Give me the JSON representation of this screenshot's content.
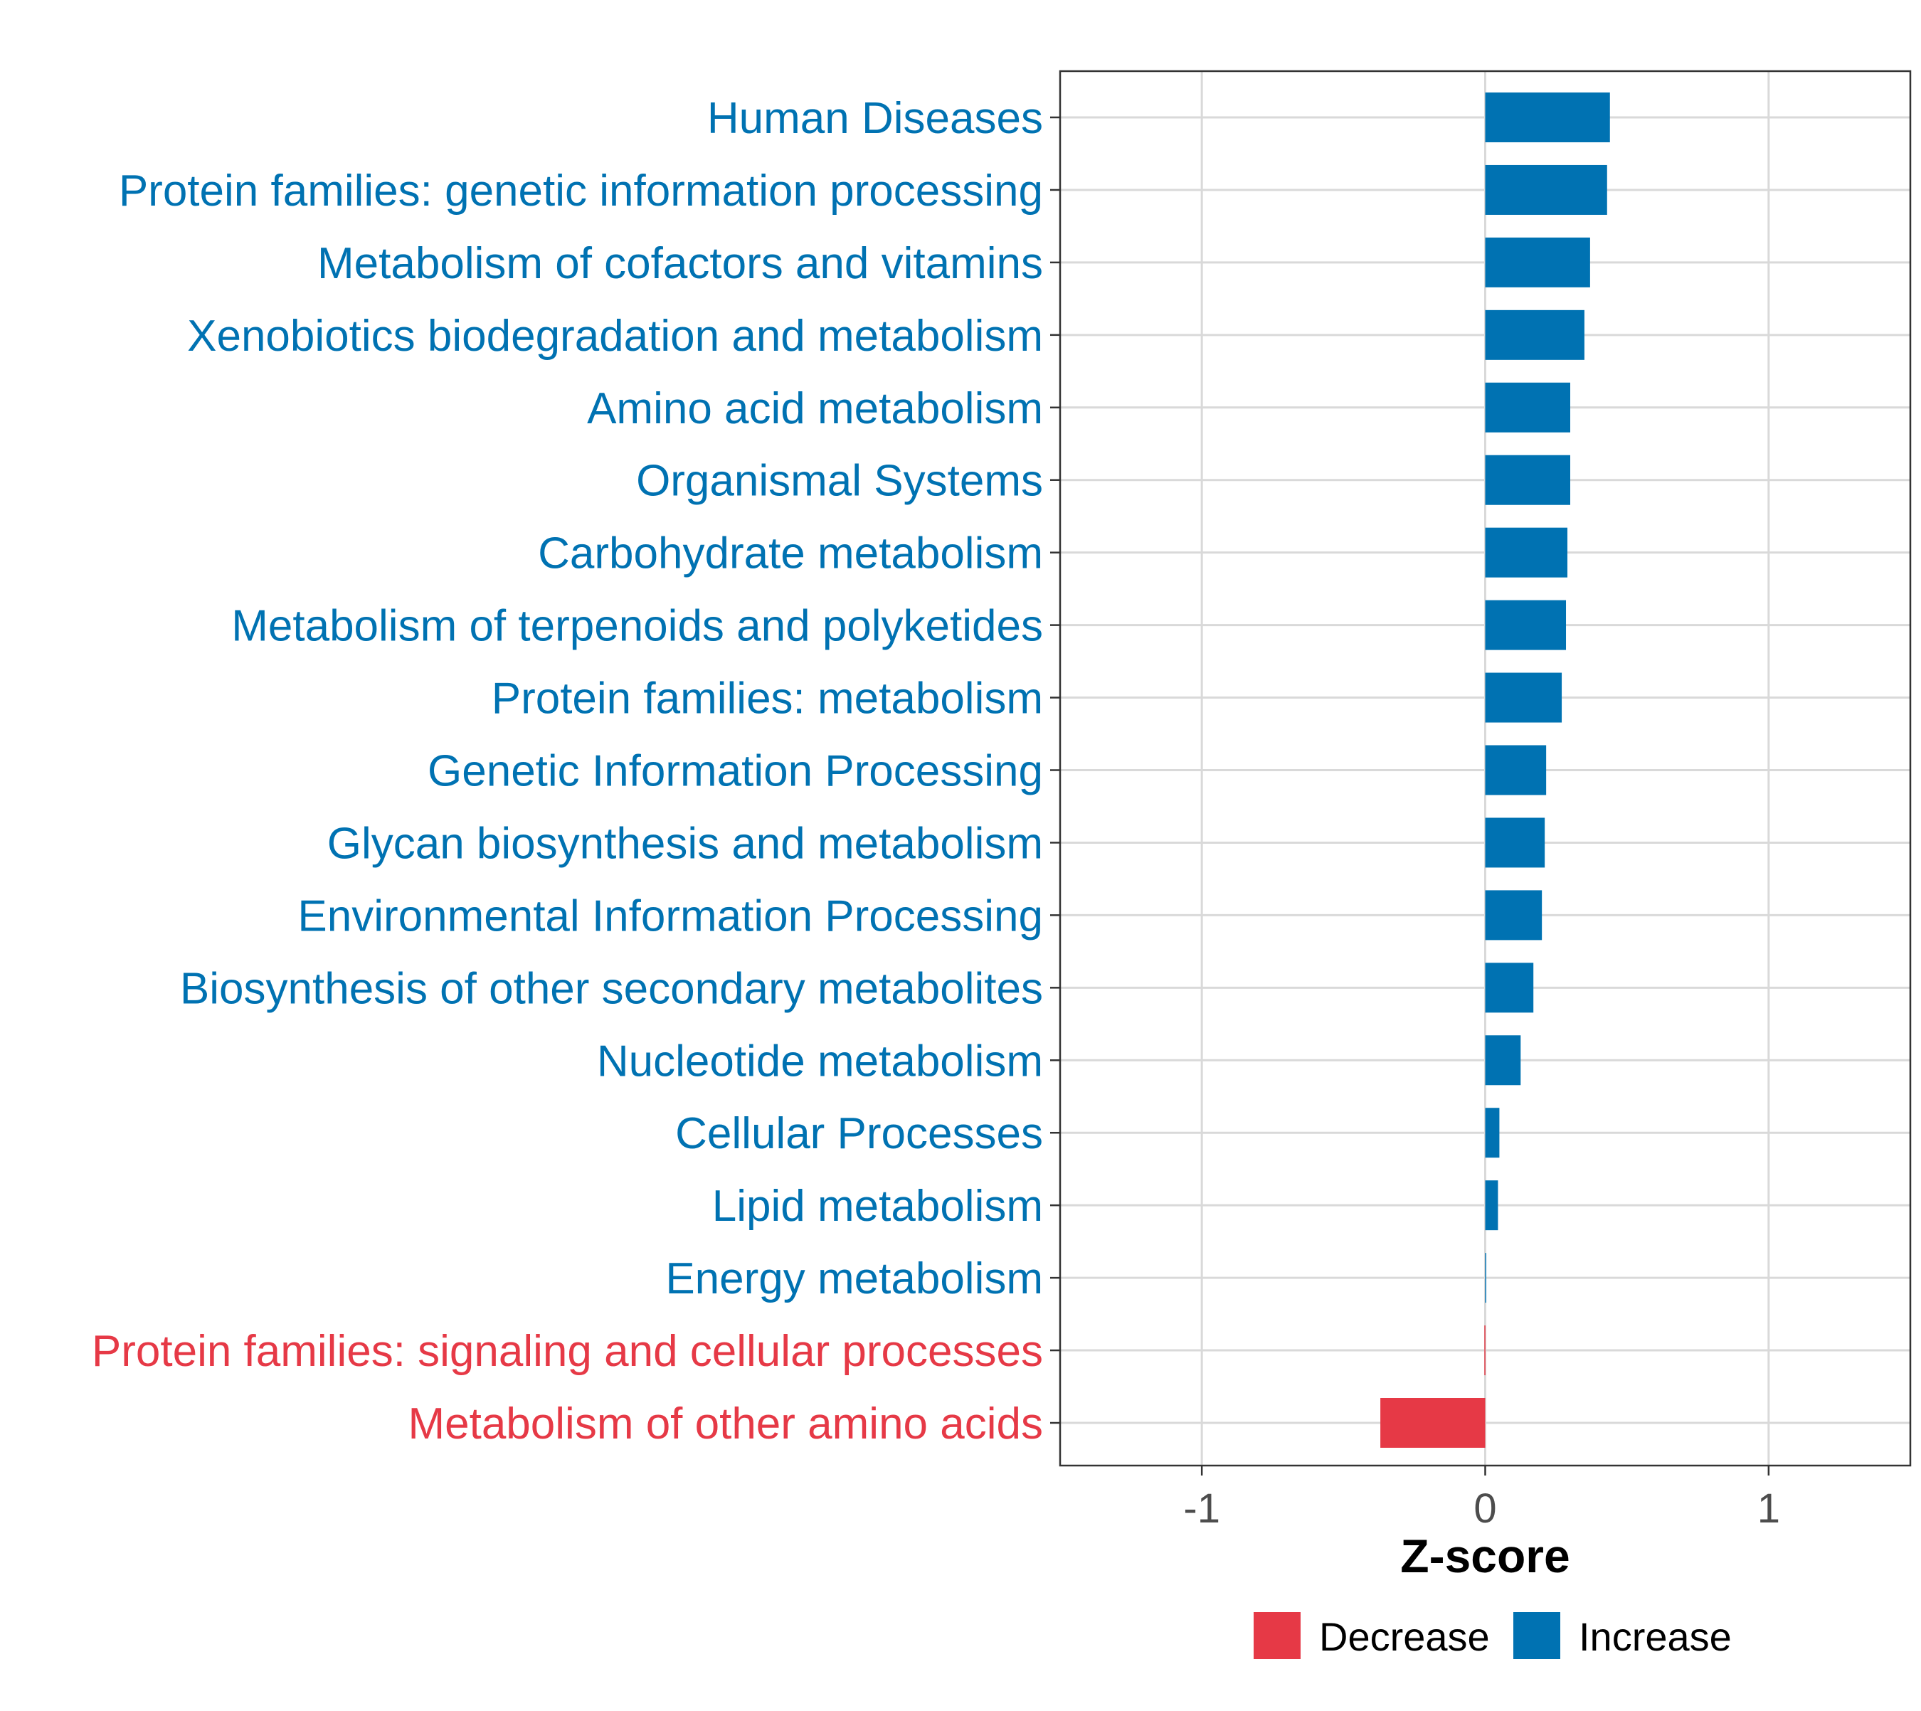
{
  "chart_data": {
    "type": "bar",
    "orientation": "horizontal",
    "xlabel": "Z-score",
    "ylabel": "",
    "xlim": [
      -1.5,
      1.5
    ],
    "xticks": [
      -1,
      0,
      1
    ],
    "tick_labels": [
      "-1",
      "0",
      "1"
    ],
    "grid": true,
    "legend_position": "bottom",
    "legend": [
      {
        "label": "Decrease",
        "color": "#E63946"
      },
      {
        "label": "Increase",
        "color": "#0072B2"
      }
    ],
    "categories": [
      "Human Diseases",
      "Protein families: genetic information processing",
      "Metabolism of cofactors and vitamins",
      "Xenobiotics biodegradation and metabolism",
      "Amino acid metabolism",
      "Organismal Systems",
      "Carbohydrate metabolism",
      "Metabolism of terpenoids and polyketides",
      "Protein families: metabolism",
      "Genetic Information Processing",
      "Glycan biosynthesis and metabolism",
      "Environmental Information Processing",
      "Biosynthesis of other secondary metabolites",
      "Nucleotide metabolism",
      "Cellular Processes",
      "Lipid metabolism",
      "Energy metabolism",
      "Protein families: signaling and cellular processes",
      "Metabolism of other amino acids"
    ],
    "values": [
      0.44,
      0.43,
      0.37,
      0.35,
      0.3,
      0.3,
      0.29,
      0.285,
      0.27,
      0.215,
      0.21,
      0.2,
      0.17,
      0.125,
      0.05,
      0.045,
      0.003,
      -0.003,
      -0.37
    ],
    "groups": [
      "Increase",
      "Increase",
      "Increase",
      "Increase",
      "Increase",
      "Increase",
      "Increase",
      "Increase",
      "Increase",
      "Increase",
      "Increase",
      "Increase",
      "Increase",
      "Increase",
      "Increase",
      "Increase",
      "Increase",
      "Decrease",
      "Decrease"
    ]
  }
}
